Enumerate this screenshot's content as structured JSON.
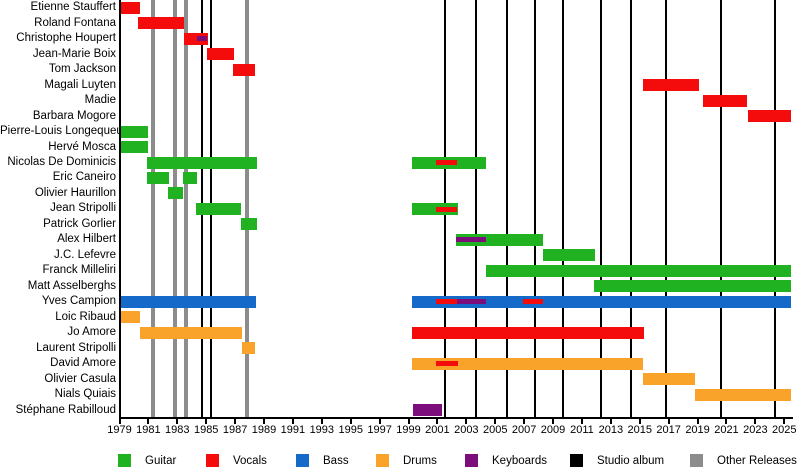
{
  "chart_data": {
    "type": "bar",
    "variant": "band-members-timeline-gantt",
    "x_axis": {
      "min": 1979,
      "max": 2025.5,
      "tick_years": [
        1979,
        1981,
        1983,
        1985,
        1987,
        1989,
        1991,
        1993,
        1995,
        1997,
        1999,
        2001,
        2003,
        2005,
        2007,
        2009,
        2011,
        2013,
        2015,
        2017,
        2019,
        2021,
        2023,
        2025
      ]
    },
    "colors": {
      "guitar": "#20b220",
      "vocals": "#f40b0b",
      "bass": "#1569c8",
      "drums": "#f9a32a",
      "keyboards": "#7c0e7c",
      "studio_album": "#000000",
      "other_releases": "#8c8c8c"
    },
    "legend": [
      {
        "key": "guitar",
        "label": "Guitar"
      },
      {
        "key": "vocals",
        "label": "Vocals"
      },
      {
        "key": "bass",
        "label": "Bass"
      },
      {
        "key": "drums",
        "label": "Drums"
      },
      {
        "key": "keyboards",
        "label": "Keyboards"
      },
      {
        "key": "studio_album",
        "label": "Studio album"
      },
      {
        "key": "other_releases",
        "label": "Other Releases"
      }
    ],
    "events": {
      "studio_albums": [
        1984.7,
        1985.35,
        2001.5,
        2003.65,
        2005.8,
        2007.75,
        2009.7,
        2012.35,
        2014.4,
        2016.85,
        2020.65,
        2024.35
      ],
      "other_releases": [
        1981.3,
        1982.85,
        1983.6,
        1987.8
      ]
    },
    "members": [
      {
        "name": "Etienne Stauffert",
        "segments": [
          {
            "role": "vocals",
            "from": 1979.05,
            "to": 1980.4
          }
        ]
      },
      {
        "name": "Roland Fontana",
        "segments": [
          {
            "role": "vocals",
            "from": 1980.3,
            "to": 1983.45
          }
        ]
      },
      {
        "name": "Christophe Houpert",
        "segments": [
          {
            "role": "vocals",
            "from": 1983.45,
            "to": 1985.15
          },
          {
            "role": "keyboards",
            "from": 1984.35,
            "to": 1985.05,
            "overlay": true
          }
        ]
      },
      {
        "name": "Jean-Marie Boix",
        "segments": [
          {
            "role": "vocals",
            "from": 1985.05,
            "to": 1986.9
          }
        ]
      },
      {
        "name": "Tom Jackson",
        "segments": [
          {
            "role": "vocals",
            "from": 1986.85,
            "to": 1988.35
          }
        ]
      },
      {
        "name": "Magali Luyten",
        "segments": [
          {
            "role": "vocals",
            "from": 2015.2,
            "to": 2019.1
          }
        ]
      },
      {
        "name": "Madie",
        "segments": [
          {
            "role": "vocals",
            "from": 2019.4,
            "to": 2022.4
          }
        ]
      },
      {
        "name": "Barbara Mogore",
        "segments": [
          {
            "role": "vocals",
            "from": 2022.5,
            "to": 2025.45
          }
        ]
      },
      {
        "name": "Pierre-Louis Longequeue",
        "segments": [
          {
            "role": "guitar",
            "from": 1979.1,
            "to": 1981.0
          }
        ]
      },
      {
        "name": "Hervé Mosca",
        "segments": [
          {
            "role": "guitar",
            "from": 1979.1,
            "to": 1981.0
          }
        ]
      },
      {
        "name": "Nicolas De Dominicis",
        "segments": [
          {
            "role": "guitar",
            "from": 1980.9,
            "to": 1988.5
          },
          {
            "role": "guitar",
            "from": 1999.25,
            "to": 2004.35
          },
          {
            "role": "vocals",
            "from": 2000.9,
            "to": 2002.35,
            "overlay": true
          }
        ]
      },
      {
        "name": "Eric Caneiro",
        "segments": [
          {
            "role": "guitar",
            "from": 1980.9,
            "to": 1982.4
          },
          {
            "role": "guitar",
            "from": 1983.4,
            "to": 1984.35
          }
        ]
      },
      {
        "name": "Olivier Haurillon",
        "segments": [
          {
            "role": "guitar",
            "from": 1982.35,
            "to": 1983.4
          }
        ]
      },
      {
        "name": "Jean Stripolli",
        "segments": [
          {
            "role": "guitar",
            "from": 1984.3,
            "to": 1987.4
          },
          {
            "role": "guitar",
            "from": 1999.25,
            "to": 2002.4
          },
          {
            "role": "vocals",
            "from": 2000.9,
            "to": 2002.35,
            "overlay": true
          }
        ]
      },
      {
        "name": "Patrick Gorlier",
        "segments": [
          {
            "role": "guitar",
            "from": 1987.4,
            "to": 1988.5
          }
        ]
      },
      {
        "name": "Alex Hilbert",
        "segments": [
          {
            "role": "guitar",
            "from": 2002.3,
            "to": 2008.3
          },
          {
            "role": "keyboards",
            "from": 2002.3,
            "to": 2004.35,
            "overlay": true
          }
        ]
      },
      {
        "name": "J.C. Lefevre",
        "segments": [
          {
            "role": "guitar",
            "from": 2008.3,
            "to": 2011.9
          }
        ]
      },
      {
        "name": "Franck Milleliri",
        "segments": [
          {
            "role": "guitar",
            "from": 2004.35,
            "to": 2025.45
          }
        ]
      },
      {
        "name": "Matt Asselberghs",
        "segments": [
          {
            "role": "guitar",
            "from": 2011.8,
            "to": 2025.45
          }
        ]
      },
      {
        "name": "Yves Campion",
        "segments": [
          {
            "role": "bass",
            "from": 1979.05,
            "to": 1988.45
          },
          {
            "role": "bass",
            "from": 1999.25,
            "to": 2025.45
          },
          {
            "role": "vocals",
            "from": 2000.9,
            "to": 2002.35,
            "overlay": true
          },
          {
            "role": "keyboards",
            "from": 2002.35,
            "to": 2004.35,
            "overlay": true
          },
          {
            "role": "vocals",
            "from": 2006.9,
            "to": 2008.3,
            "overlay": true
          }
        ]
      },
      {
        "name": "Loic Ribaud",
        "segments": [
          {
            "role": "drums",
            "from": 1979.05,
            "to": 1980.45
          }
        ]
      },
      {
        "name": "Jo Amore",
        "segments": [
          {
            "role": "drums",
            "from": 1980.4,
            "to": 1987.5
          },
          {
            "role": "vocals",
            "from": 1999.25,
            "to": 2015.3
          }
        ]
      },
      {
        "name": "Laurent Stripolli",
        "segments": [
          {
            "role": "drums",
            "from": 1987.45,
            "to": 1988.4
          }
        ]
      },
      {
        "name": "David Amore",
        "segments": [
          {
            "role": "drums",
            "from": 1999.25,
            "to": 2015.25
          },
          {
            "role": "vocals",
            "from": 2000.9,
            "to": 2002.4,
            "overlay": true
          }
        ]
      },
      {
        "name": "Olivier Casula",
        "segments": [
          {
            "role": "drums",
            "from": 2015.2,
            "to": 2018.8
          }
        ]
      },
      {
        "name": "Nials Quiais",
        "segments": [
          {
            "role": "drums",
            "from": 2018.8,
            "to": 2025.45
          }
        ]
      },
      {
        "name": "Stéphane Rabilloud",
        "segments": [
          {
            "role": "keyboards",
            "from": 1999.3,
            "to": 2001.35
          }
        ]
      }
    ]
  }
}
